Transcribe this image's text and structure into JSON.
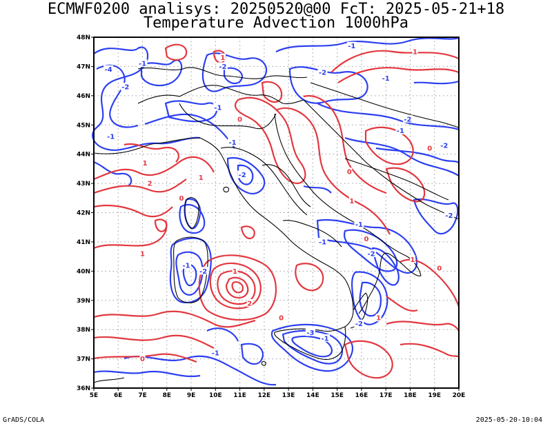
{
  "header": {
    "title_line1": "ECMWF0200 analisys: 20250520@00 FcT: 2025-05-21+18",
    "title_line2": "Temperature Advection 1000hPa"
  },
  "footer": {
    "software": "GrADS/COLA",
    "timestamp": "2025-05-20-10:04"
  },
  "map": {
    "lon_range": [
      5,
      20
    ],
    "lat_range": [
      36,
      48
    ],
    "lon_ticks": [
      "5E",
      "6E",
      "7E",
      "8E",
      "9E",
      "10E",
      "11E",
      "12E",
      "13E",
      "14E",
      "15E",
      "16E",
      "17E",
      "18E",
      "19E",
      "20E"
    ],
    "lat_ticks": [
      "36N",
      "37N",
      "38N",
      "39N",
      "40N",
      "41N",
      "42N",
      "43N",
      "44N",
      "45N",
      "46N",
      "47N",
      "48N"
    ],
    "grid": "dotted",
    "colors": {
      "positive_contour": "#e2373f",
      "negative_contour": "#2c3ff0",
      "coastline": "#000000",
      "grid": "#999999"
    },
    "contour_labels": [
      {
        "text": "-1",
        "lon": 5.7,
        "lat": 44.6,
        "sign": "neg"
      },
      {
        "text": "-4",
        "lon": 5.6,
        "lat": 46.9,
        "sign": "neg"
      },
      {
        "text": "-2",
        "lon": 6.3,
        "lat": 46.3,
        "sign": "neg"
      },
      {
        "text": "-1",
        "lon": 7.0,
        "lat": 47.1,
        "sign": "neg"
      },
      {
        "text": "-2",
        "lon": 10.3,
        "lat": 47.0,
        "sign": "neg"
      },
      {
        "text": "-1",
        "lon": 10.1,
        "lat": 45.6,
        "sign": "neg"
      },
      {
        "text": "-2",
        "lon": 14.4,
        "lat": 46.8,
        "sign": "neg"
      },
      {
        "text": "-1",
        "lon": 15.6,
        "lat": 47.7,
        "sign": "neg"
      },
      {
        "text": "1",
        "lon": 18.2,
        "lat": 47.5,
        "sign": "pos"
      },
      {
        "text": "-1",
        "lon": 17.0,
        "lat": 46.6,
        "sign": "neg"
      },
      {
        "text": "1",
        "lon": 10.3,
        "lat": 47.3,
        "sign": "pos"
      },
      {
        "text": "0",
        "lon": 11.0,
        "lat": 45.2,
        "sign": "pos"
      },
      {
        "text": "-2",
        "lon": 17.9,
        "lat": 45.2,
        "sign": "neg"
      },
      {
        "text": "-1",
        "lon": 17.6,
        "lat": 44.8,
        "sign": "neg"
      },
      {
        "text": "-2",
        "lon": 19.4,
        "lat": 44.3,
        "sign": "neg"
      },
      {
        "text": "0",
        "lon": 18.8,
        "lat": 44.2,
        "sign": "pos"
      },
      {
        "text": "1",
        "lon": 7.1,
        "lat": 43.7,
        "sign": "pos"
      },
      {
        "text": "2",
        "lon": 7.3,
        "lat": 43.0,
        "sign": "pos"
      },
      {
        "text": "-1",
        "lon": 10.7,
        "lat": 44.4,
        "sign": "neg"
      },
      {
        "text": "-2",
        "lon": 11.1,
        "lat": 43.3,
        "sign": "neg"
      },
      {
        "text": "0",
        "lon": 15.5,
        "lat": 43.4,
        "sign": "pos"
      },
      {
        "text": "1",
        "lon": 15.6,
        "lat": 42.4,
        "sign": "pos"
      },
      {
        "text": "0",
        "lon": 8.6,
        "lat": 42.5,
        "sign": "pos"
      },
      {
        "text": "1",
        "lon": 9.4,
        "lat": 43.2,
        "sign": "pos"
      },
      {
        "text": "-1",
        "lon": 8.8,
        "lat": 40.2,
        "sign": "neg"
      },
      {
        "text": "-2",
        "lon": 9.5,
        "lat": 40.0,
        "sign": "neg"
      },
      {
        "text": "1",
        "lon": 7.0,
        "lat": 40.6,
        "sign": "pos"
      },
      {
        "text": "1",
        "lon": 10.8,
        "lat": 40.0,
        "sign": "pos"
      },
      {
        "text": "2",
        "lon": 11.4,
        "lat": 38.9,
        "sign": "pos"
      },
      {
        "text": "-1",
        "lon": 15.9,
        "lat": 41.6,
        "sign": "neg"
      },
      {
        "text": "-2",
        "lon": 16.4,
        "lat": 40.6,
        "sign": "neg"
      },
      {
        "text": "0",
        "lon": 16.2,
        "lat": 41.1,
        "sign": "pos"
      },
      {
        "text": "-1",
        "lon": 14.4,
        "lat": 41.0,
        "sign": "neg"
      },
      {
        "text": "-2",
        "lon": 15.9,
        "lat": 38.2,
        "sign": "neg"
      },
      {
        "text": "-3",
        "lon": 13.9,
        "lat": 37.9,
        "sign": "neg"
      },
      {
        "text": "-1",
        "lon": 14.5,
        "lat": 37.7,
        "sign": "neg"
      },
      {
        "text": "1",
        "lon": 16.7,
        "lat": 38.4,
        "sign": "pos"
      },
      {
        "text": "0",
        "lon": 12.7,
        "lat": 38.4,
        "sign": "pos"
      },
      {
        "text": "-1",
        "lon": 10.0,
        "lat": 37.2,
        "sign": "neg"
      },
      {
        "text": "0",
        "lon": 7.0,
        "lat": 37.0,
        "sign": "pos"
      },
      {
        "text": "1",
        "lon": 18.1,
        "lat": 40.4,
        "sign": "pos"
      },
      {
        "text": "-2",
        "lon": 19.6,
        "lat": 41.9,
        "sign": "neg"
      },
      {
        "text": "0",
        "lon": 19.2,
        "lat": 40.1,
        "sign": "pos"
      }
    ]
  }
}
